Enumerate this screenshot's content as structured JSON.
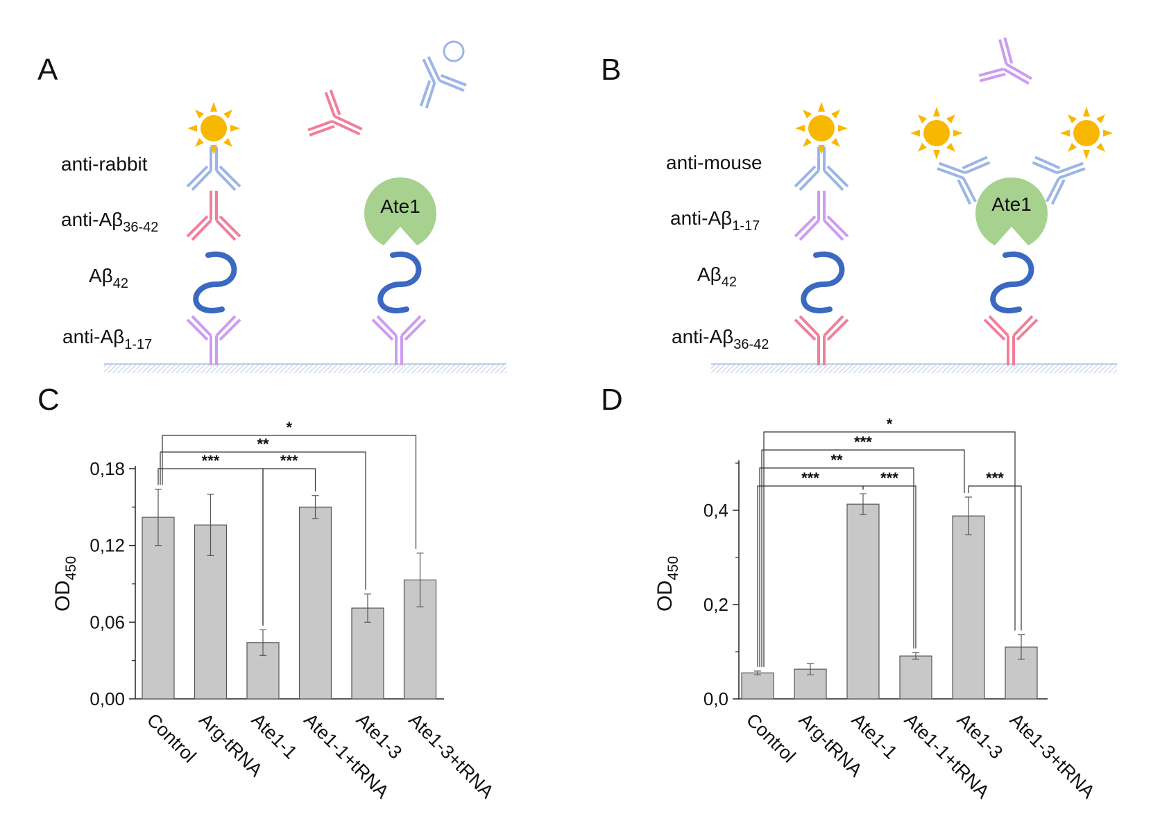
{
  "panels": {
    "a": {
      "letter": "A",
      "labels": {
        "anti_rabbit": "anti-rabbit",
        "anti_abeta_36_42": {
          "main": "anti-Aβ",
          "sub": "36-42"
        },
        "abeta42": {
          "main": "Aβ",
          "sub": "42"
        },
        "anti_abeta_1_17": {
          "main": "anti-Aβ",
          "sub": "1-17"
        }
      },
      "ate1_label": "Ate1"
    },
    "b": {
      "letter": "B",
      "labels": {
        "anti_mouse": "anti-mouse",
        "anti_abeta_1_17": {
          "main": "anti-Aβ",
          "sub": "1-17"
        },
        "abeta42": {
          "main": "Aβ",
          "sub": "42"
        },
        "anti_abeta_36_42": {
          "main": "anti-Aβ",
          "sub": "36-42"
        }
      },
      "ate1_label": "Ate1"
    },
    "c": {
      "letter": "C"
    },
    "d": {
      "letter": "D"
    }
  },
  "colors": {
    "rabbit_antibody": "#9db5e6",
    "abeta_36_42_antibody": "#f07f9a",
    "abeta_1_17_antibody": "#cc9cf0",
    "abeta_peptide": "#3b68c0",
    "ate1": "#a7d18e",
    "sun": "#f8b700",
    "bar_fill": "#c8c8c8",
    "bar_stroke": "#555555",
    "surface": "#a9bde0"
  },
  "chart_data": [
    {
      "type": "bar",
      "panel": "C",
      "categories": [
        "Control",
        "Arg-tRNA",
        "Ate1-1",
        "Ate1-1+tRNA",
        "Ate1-3",
        "Ate1-3+tRNA"
      ],
      "values": [
        0.142,
        0.136,
        0.044,
        0.15,
        0.071,
        0.093
      ],
      "errors": [
        0.022,
        0.024,
        0.01,
        0.009,
        0.011,
        0.021
      ],
      "ylabel": {
        "main": "OD",
        "sub": "450"
      },
      "ylim": [
        0,
        0.18
      ],
      "yticks": [
        0.0,
        0.06,
        0.12,
        0.18
      ],
      "ytick_labels": [
        "0,00",
        "0,06",
        "0,12",
        "0,18"
      ],
      "significance": [
        {
          "from": 0,
          "to": 2,
          "label": "***",
          "level": 1
        },
        {
          "from": 2,
          "to": 3,
          "label": "***",
          "level": 1
        },
        {
          "from": 0,
          "to": 4,
          "label": "**",
          "level": 2
        },
        {
          "from": 0,
          "to": 5,
          "label": "*",
          "level": 3
        }
      ]
    },
    {
      "type": "bar",
      "panel": "D",
      "categories": [
        "Control",
        "Arg-tRNA",
        "Ate1-1",
        "Ate1-1+tRNA",
        "Ate1-3",
        "Ate1-3+tRNA"
      ],
      "values": [
        0.055,
        0.063,
        0.413,
        0.091,
        0.388,
        0.11
      ],
      "errors": [
        0.004,
        0.012,
        0.022,
        0.007,
        0.04,
        0.026
      ],
      "ylabel": {
        "main": "OD",
        "sub": "450"
      },
      "ylim": [
        0,
        0.5
      ],
      "yticks": [
        0.0,
        0.2,
        0.4
      ],
      "ytick_labels": [
        "0,0",
        "0,2",
        "0,4"
      ],
      "significance": [
        {
          "from": 0,
          "to": 2,
          "label": "***",
          "level": 1
        },
        {
          "from": 2,
          "to": 3,
          "label": "***",
          "level": 1
        },
        {
          "from": 4,
          "to": 5,
          "label": "***",
          "level": 1
        },
        {
          "from": 0,
          "to": 3,
          "label": "**",
          "level": 2
        },
        {
          "from": 0,
          "to": 4,
          "label": "***",
          "level": 3
        },
        {
          "from": 0,
          "to": 5,
          "label": "*",
          "level": 4
        }
      ]
    }
  ]
}
